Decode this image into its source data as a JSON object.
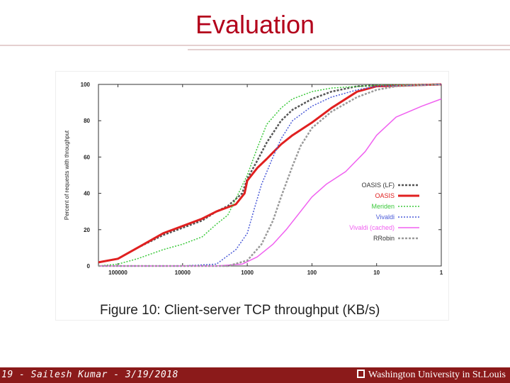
{
  "slide": {
    "title": "Evaluation",
    "footer_left": "19 - Sailesh Kumar - 3/19/2018",
    "footer_right": "Washington University in St.Louis"
  },
  "colors": {
    "title": "#b3001b",
    "footer_bg": "#8b1a1a"
  },
  "chart_data": {
    "type": "line",
    "title": "",
    "caption": "Figure 10: Client-server TCP throughput (KB/s)",
    "xlabel": "",
    "ylabel": "Percent of requests with throughput",
    "x_scale": "log",
    "x_reversed": true,
    "xlim": [
      100000,
      1
    ],
    "ylim": [
      0,
      100
    ],
    "xticks": [
      100000,
      10000,
      1000,
      100,
      10,
      1
    ],
    "xtick_labels": [
      "100000",
      "10000",
      "1000",
      "100",
      "10",
      "1"
    ],
    "yticks": [
      0,
      20,
      40,
      60,
      80,
      100
    ],
    "ytick_labels": [
      "0",
      "20",
      "40",
      "60",
      "80",
      "100"
    ],
    "grid": false,
    "legend_position": "right",
    "series": [
      {
        "name": "OASIS (LF)",
        "color": "#555555",
        "dash": "3,2",
        "width": 2.5,
        "points": [
          [
            200000,
            2
          ],
          [
            100000,
            4
          ],
          [
            50000,
            10
          ],
          [
            20000,
            17
          ],
          [
            10000,
            21
          ],
          [
            5000,
            25
          ],
          [
            3000,
            30
          ],
          [
            2000,
            33
          ],
          [
            1200,
            40
          ],
          [
            1000,
            48
          ],
          [
            700,
            58
          ],
          [
            500,
            68
          ],
          [
            300,
            80
          ],
          [
            200,
            86
          ],
          [
            100,
            92
          ],
          [
            50,
            96
          ],
          [
            20,
            99
          ],
          [
            10,
            99.5
          ],
          [
            1,
            100
          ]
        ]
      },
      {
        "name": "OASIS",
        "color": "#e02020",
        "dash": "",
        "width": 3,
        "points": [
          [
            200000,
            2
          ],
          [
            100000,
            4
          ],
          [
            50000,
            10
          ],
          [
            20000,
            18
          ],
          [
            10000,
            22
          ],
          [
            5000,
            26
          ],
          [
            3000,
            30
          ],
          [
            1500,
            34
          ],
          [
            1100,
            40
          ],
          [
            1000,
            47
          ],
          [
            700,
            54
          ],
          [
            500,
            59
          ],
          [
            300,
            67
          ],
          [
            200,
            72
          ],
          [
            100,
            79
          ],
          [
            50,
            87
          ],
          [
            20,
            96
          ],
          [
            10,
            99
          ],
          [
            1,
            100
          ]
        ]
      },
      {
        "name": "Meriden",
        "color": "#3cc93c",
        "dash": "2,2",
        "width": 1.5,
        "points": [
          [
            200000,
            0
          ],
          [
            100000,
            1
          ],
          [
            50000,
            4
          ],
          [
            20000,
            9
          ],
          [
            10000,
            12
          ],
          [
            5000,
            16
          ],
          [
            3000,
            23
          ],
          [
            2000,
            28
          ],
          [
            1500,
            37
          ],
          [
            1000,
            50
          ],
          [
            700,
            65
          ],
          [
            500,
            78
          ],
          [
            300,
            87
          ],
          [
            200,
            92
          ],
          [
            100,
            96
          ],
          [
            50,
            98
          ],
          [
            10,
            99.5
          ],
          [
            1,
            100
          ]
        ]
      },
      {
        "name": "Vivaldi",
        "color": "#4a5ad8",
        "dash": "2,2",
        "width": 1.5,
        "points": [
          [
            200000,
            0
          ],
          [
            10000,
            0
          ],
          [
            3000,
            1
          ],
          [
            1500,
            9
          ],
          [
            1000,
            18
          ],
          [
            800,
            30
          ],
          [
            600,
            45
          ],
          [
            400,
            60
          ],
          [
            300,
            70
          ],
          [
            200,
            80
          ],
          [
            100,
            88
          ],
          [
            50,
            93
          ],
          [
            20,
            97
          ],
          [
            10,
            99
          ],
          [
            1,
            100
          ]
        ]
      },
      {
        "name": "Vivaldi (cached)",
        "color": "#f060f0",
        "dash": "",
        "width": 1.5,
        "points": [
          [
            200000,
            0
          ],
          [
            10000,
            0
          ],
          [
            3000,
            0
          ],
          [
            1200,
            1
          ],
          [
            700,
            5
          ],
          [
            400,
            12
          ],
          [
            250,
            20
          ],
          [
            150,
            30
          ],
          [
            100,
            38
          ],
          [
            60,
            45
          ],
          [
            30,
            52
          ],
          [
            15,
            63
          ],
          [
            10,
            72
          ],
          [
            5,
            82
          ],
          [
            2,
            88
          ],
          [
            1,
            92
          ]
        ]
      },
      {
        "name": "RRobin",
        "color": "#9a9a9a",
        "dash": "3,2",
        "width": 2.5,
        "points": [
          [
            200000,
            0
          ],
          [
            10000,
            0
          ],
          [
            2000,
            0
          ],
          [
            1000,
            3
          ],
          [
            600,
            12
          ],
          [
            400,
            25
          ],
          [
            300,
            38
          ],
          [
            200,
            55
          ],
          [
            150,
            66
          ],
          [
            100,
            76
          ],
          [
            50,
            85
          ],
          [
            20,
            93
          ],
          [
            10,
            97
          ],
          [
            5,
            99
          ],
          [
            1,
            100
          ]
        ]
      }
    ]
  }
}
